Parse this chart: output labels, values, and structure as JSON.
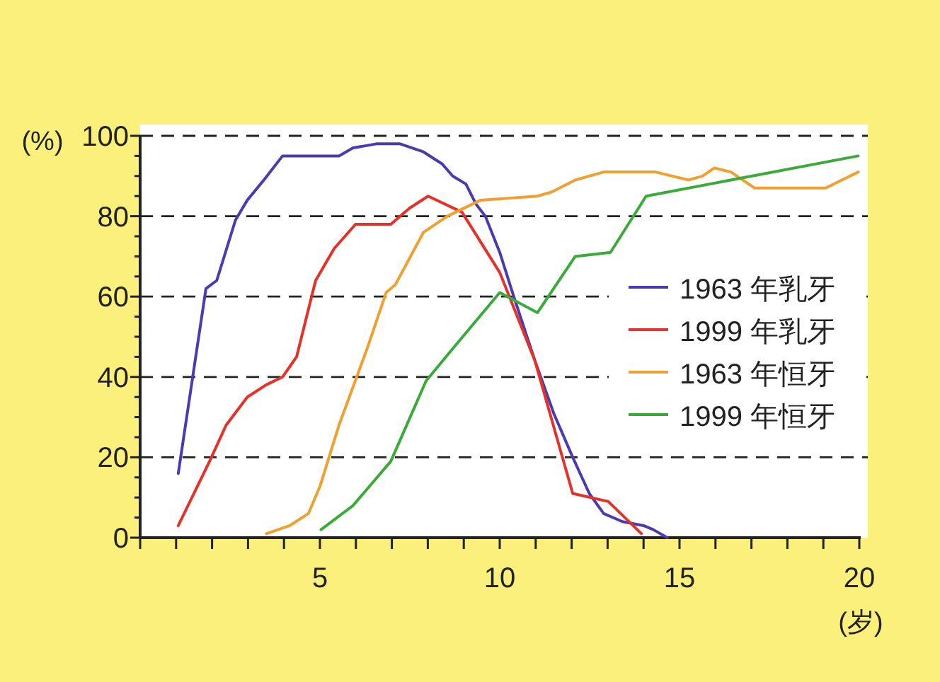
{
  "chart_data": {
    "type": "line",
    "ylabel": "(%)",
    "xlabel": "(岁)",
    "xlim": [
      0,
      20
    ],
    "ylim": [
      0,
      100
    ],
    "xticks": [
      {
        "value": 0,
        "label": null
      },
      {
        "value": 1,
        "label": null
      },
      {
        "value": 2,
        "label": null
      },
      {
        "value": 3,
        "label": null
      },
      {
        "value": 4,
        "label": null
      },
      5,
      {
        "value": 6,
        "label": null
      },
      {
        "value": 7,
        "label": null
      },
      {
        "value": 8,
        "label": null
      },
      {
        "value": 9,
        "label": null
      },
      10,
      {
        "value": 11,
        "label": null
      },
      {
        "value": 12,
        "label": null
      },
      {
        "value": 13,
        "label": null
      },
      {
        "value": 14,
        "label": null
      },
      15,
      {
        "value": 16,
        "label": null
      },
      {
        "value": 17,
        "label": null
      },
      {
        "value": 18,
        "label": null
      },
      {
        "value": 19,
        "label": null
      },
      20
    ],
    "yticks": [
      0,
      {
        "value": 5,
        "label": null
      },
      {
        "value": 10,
        "label": null
      },
      {
        "value": 15,
        "label": null
      },
      20,
      {
        "value": 25,
        "label": null
      },
      {
        "value": 30,
        "label": null
      },
      {
        "value": 35,
        "label": null
      },
      40,
      {
        "value": 45,
        "label": null
      },
      {
        "value": 50,
        "label": null
      },
      {
        "value": 55,
        "label": null
      },
      60,
      {
        "value": 65,
        "label": null
      },
      {
        "value": 70,
        "label": null
      },
      {
        "value": 75,
        "label": null
      },
      80,
      {
        "value": 85,
        "label": null
      },
      {
        "value": 90,
        "label": null
      },
      {
        "value": 95,
        "label": null
      },
      100
    ],
    "grid": "y",
    "legend": "right",
    "marker": "none",
    "line_style": "solid",
    "series": [
      {
        "name": "1963 年乳牙",
        "color": "#4a3cb0",
        "x": [
          1.06,
          1.83,
          2.13,
          2.65,
          2.98,
          3.44,
          3.96,
          4.48,
          5.53,
          5.92,
          6.57,
          7.23,
          7.88,
          8.4,
          8.69,
          9.06,
          9.34,
          9.6,
          10,
          10.39,
          10.98,
          11.5,
          12.03,
          12.49,
          12.89,
          13.41,
          14,
          14.27,
          14.66
        ],
        "values": [
          16,
          62,
          64,
          79,
          84,
          89,
          95,
          95,
          95,
          97,
          98,
          98,
          96,
          93,
          90,
          88,
          83,
          80,
          71,
          60,
          44,
          31,
          20,
          11,
          6,
          4,
          3,
          2,
          0
        ]
      },
      {
        "name": "1999 年乳牙",
        "color": "#e8302a",
        "x": [
          1.06,
          1.93,
          2.39,
          2.98,
          3.5,
          3.96,
          4.35,
          4.88,
          5.4,
          5.99,
          6.97,
          7.49,
          8.01,
          8.95,
          10,
          10.98,
          12.03,
          13.02,
          13.94
        ],
        "values": [
          3,
          19,
          28,
          35,
          38,
          40,
          45,
          64,
          72,
          78,
          78,
          82,
          85,
          81,
          66,
          44,
          11,
          9,
          1
        ]
      },
      {
        "name": "1963 年恒牙",
        "color": "#f0a030",
        "x": [
          3.51,
          4.16,
          4.68,
          5.01,
          5.53,
          6.31,
          6.84,
          7.1,
          7.88,
          8.54,
          9.47,
          11.05,
          11.44,
          12.1,
          12.89,
          14.33,
          15.25,
          15.64,
          15.97,
          16.43,
          17.09,
          19.06,
          19.97
        ],
        "values": [
          1,
          3,
          6,
          13,
          28,
          47,
          61,
          63,
          76,
          80,
          84,
          85,
          86,
          89,
          91,
          91,
          89,
          90,
          92,
          91,
          87,
          87,
          91
        ]
      },
      {
        "name": "1999 年恒牙",
        "color": "#3aaa3a",
        "x": [
          5.03,
          5.92,
          6.97,
          7.95,
          8.69,
          10,
          11.05,
          12.1,
          13.08,
          14.07,
          19.97
        ],
        "values": [
          2,
          8,
          19,
          39,
          47,
          61,
          56,
          70,
          71,
          85,
          95
        ]
      }
    ]
  }
}
